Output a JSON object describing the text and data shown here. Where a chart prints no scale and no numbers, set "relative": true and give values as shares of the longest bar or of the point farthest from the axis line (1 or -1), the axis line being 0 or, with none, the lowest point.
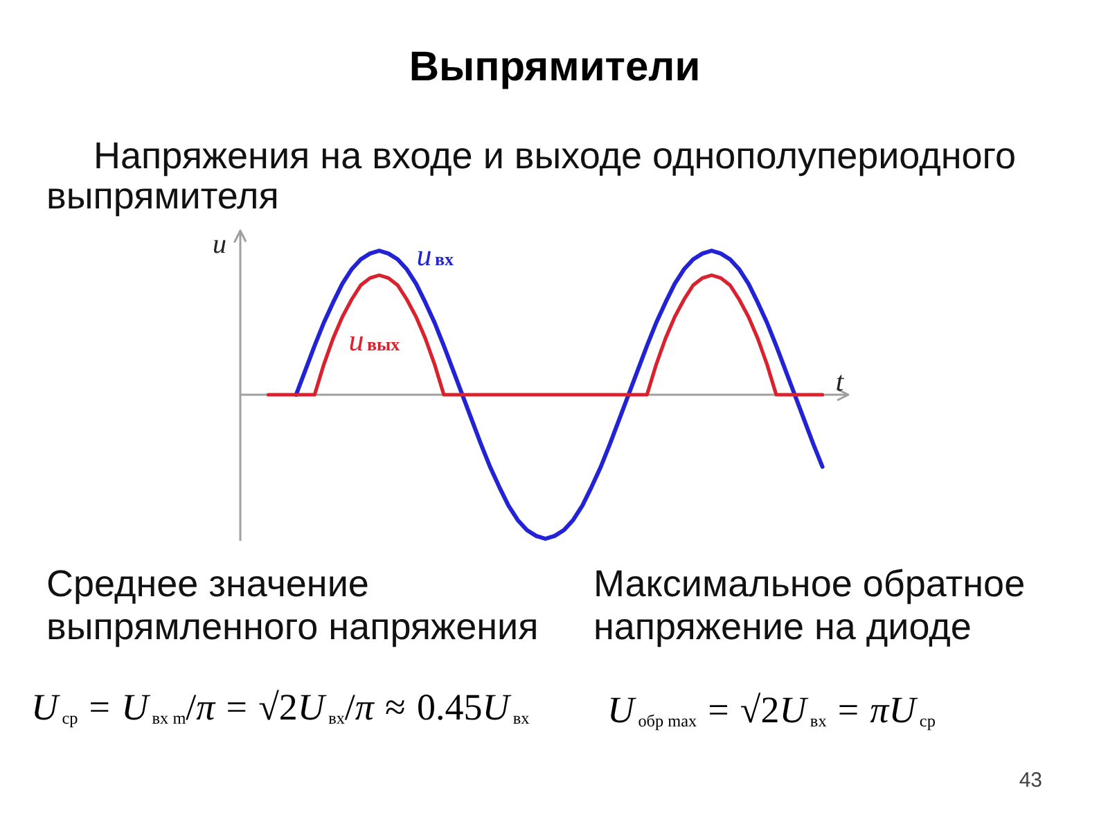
{
  "chart_data": {
    "type": "line",
    "title": "Выпрямители",
    "subtitle": "Напряжения на входе и выходе однополупериодного выпрямителя",
    "xlabel": "t",
    "ylabel": "u",
    "relative": true,
    "categories": [
      null,
      null,
      null,
      null,
      null,
      null,
      null,
      null,
      null,
      null,
      null,
      null,
      null,
      null,
      null,
      null,
      null,
      null,
      null,
      null,
      null,
      null,
      null,
      null,
      null,
      null,
      null,
      null,
      null,
      null,
      null,
      null,
      null,
      null,
      null,
      null,
      null,
      null,
      null,
      null,
      null,
      null,
      null,
      null,
      null,
      null,
      null,
      null,
      null,
      null,
      null,
      null,
      null,
      null,
      null,
      null,
      null,
      null,
      null,
      null,
      null
    ],
    "series": [
      {
        "name": "u$_{вх}$",
        "color": "#2323d6",
        "values": [
          null,
          null,
          null,
          0,
          0.17,
          0.34,
          0.5,
          0.64,
          0.77,
          0.87,
          0.94,
          0.98,
          1,
          0.98,
          0.94,
          0.87,
          0.77,
          0.64,
          0.5,
          0.34,
          0.17,
          0,
          -0.17,
          -0.34,
          -0.5,
          -0.64,
          -0.77,
          -0.87,
          -0.94,
          -0.98,
          -1,
          -0.98,
          -0.94,
          -0.87,
          -0.77,
          -0.64,
          -0.5,
          -0.34,
          -0.17,
          0,
          0.17,
          0.34,
          0.5,
          0.64,
          0.77,
          0.87,
          0.94,
          0.98,
          1,
          0.98,
          0.94,
          0.87,
          0.77,
          0.64,
          0.5,
          0.34,
          0.17,
          0,
          -0.17,
          -0.34,
          -0.5
        ]
      },
      {
        "name": "u$_{вых}$",
        "color": "#d9222e",
        "values": [
          0,
          0,
          0,
          0,
          0,
          0,
          0.21,
          0.39,
          0.54,
          0.66,
          0.76,
          0.81,
          0.83,
          0.81,
          0.76,
          0.66,
          0.54,
          0.39,
          0.21,
          0,
          0,
          0,
          0,
          0,
          0,
          0,
          0,
          0,
          0,
          0,
          0,
          0,
          0,
          0,
          0,
          0,
          0,
          0,
          0,
          0,
          0,
          0,
          0.21,
          0.39,
          0.54,
          0.66,
          0.76,
          0.81,
          0.83,
          0.81,
          0.76,
          0.66,
          0.54,
          0.39,
          0.21,
          0,
          0,
          0,
          0,
          0,
          0
        ]
      }
    ],
    "annotations": [
      "Среднее значение выпрямленного напряжения",
      "U$_{ср}$ = U$_{вх m}$/π = √2U$_{вх}$/π ≈ 0.45U$_{вх}$",
      "Максимальное обратное напряжение на диоде",
      "U$_{обр max}$ = √2U$_{вх}$ = πU$_{ср}$",
      "43"
    ]
  }
}
